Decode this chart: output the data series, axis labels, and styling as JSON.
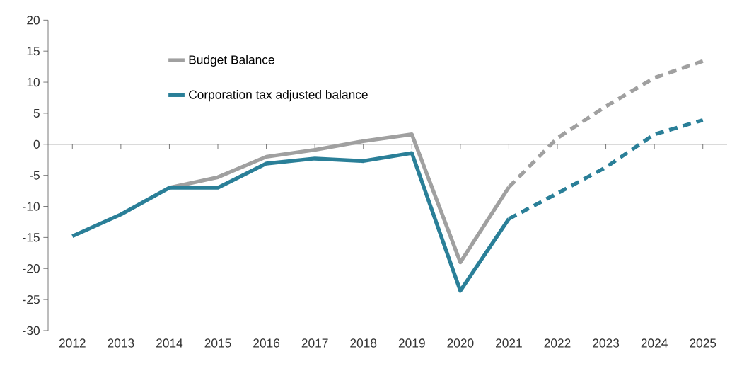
{
  "chart_data": {
    "type": "line",
    "categories": [
      "2012",
      "2013",
      "2014",
      "2015",
      "2016",
      "2017",
      "2018",
      "2019",
      "2020",
      "2021",
      "2022",
      "2023",
      "2024",
      "2025"
    ],
    "series": [
      {
        "name": "Budget Balance",
        "color": "#a0a0a0",
        "line_style": "solid",
        "values": [
          null,
          null,
          -7.0,
          -5.3,
          -2.0,
          -0.9,
          0.5,
          1.6,
          -19.0,
          -6.9,
          null,
          null,
          null,
          null
        ]
      },
      {
        "name": "Corporation tax adjusted balance",
        "color": "#2a7f98",
        "line_style": "solid",
        "values": [
          -14.8,
          -11.3,
          -7.0,
          -7.0,
          -3.1,
          -2.3,
          -2.7,
          -1.4,
          -23.6,
          -12.0,
          null,
          null,
          null,
          null
        ]
      },
      {
        "color": "#a0a0a0",
        "line_style": "dashed",
        "values": [
          null,
          null,
          null,
          null,
          null,
          null,
          null,
          null,
          null,
          -6.9,
          1.0,
          6.1,
          10.7,
          13.4
        ]
      },
      {
        "color": "#2a7f98",
        "line_style": "dashed",
        "values": [
          null,
          null,
          null,
          null,
          null,
          null,
          null,
          null,
          null,
          -12.0,
          -7.9,
          -3.7,
          1.6,
          3.9
        ]
      }
    ],
    "ylim": [
      -30,
      20
    ],
    "yticks": [
      -30,
      -25,
      -20,
      -15,
      -10,
      -5,
      0,
      5,
      10,
      15,
      20
    ],
    "legend": "top left",
    "marker": "none"
  }
}
